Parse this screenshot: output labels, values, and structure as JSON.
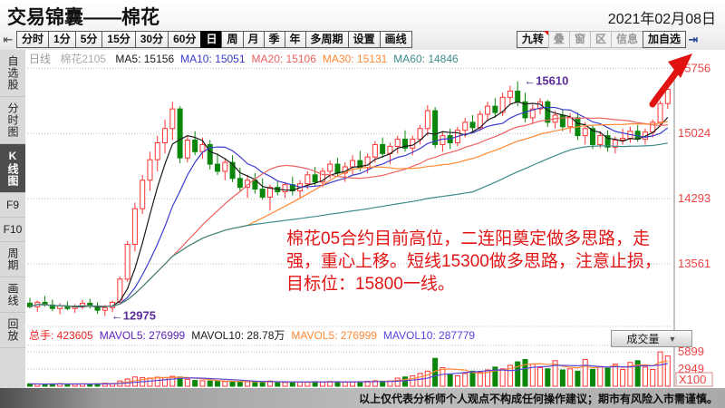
{
  "window": {
    "title": "交易锦囊——棉花",
    "date": "2021年02月08日"
  },
  "toolbar": {
    "collapse_icon": "⇤",
    "jump_icon": "⇥",
    "periods": [
      "分时",
      "1分",
      "5分",
      "15分",
      "30分",
      "60分",
      "日",
      "周",
      "月",
      "季",
      "年",
      "多周期",
      "设置",
      "画线"
    ],
    "active_period": "日",
    "tools": [
      {
        "label": "九转",
        "badge": true
      },
      {
        "label": "叠",
        "muted": true
      },
      {
        "label": "窗",
        "muted": true
      },
      {
        "label": "区",
        "muted": true
      },
      {
        "label": "信息",
        "muted": true
      },
      {
        "label": "加自选"
      }
    ]
  },
  "sidebar": {
    "items": [
      "自选股",
      "分时图",
      "K线图",
      "F9",
      "F10",
      "周期",
      "画线",
      "回放"
    ],
    "active": "K线图"
  },
  "indicator_bar": {
    "period": "日线",
    "symbol": "棉花2105",
    "ma_items": [
      {
        "label": "MA5: 15156",
        "color": "#1a1a1a"
      },
      {
        "label": "MA10: 15051",
        "color": "#3c3ccc"
      },
      {
        "label": "MA20: 15106",
        "color": "#ee6060"
      },
      {
        "label": "MA30: 15131",
        "color": "#ff8833"
      },
      {
        "label": "MA60: 14846",
        "color": "#3d8a8a"
      }
    ]
  },
  "volume_bar": {
    "items": [
      {
        "label": "总手: 423605",
        "color": "#ee2222"
      },
      {
        "label": "MAVOL5: 276999",
        "color": "#5b22bb"
      },
      {
        "label": "MAVOL10: 28.78万",
        "color": "#1a1a1a"
      },
      {
        "label": "MAVOL5: 276999",
        "color": "#ff8833"
      },
      {
        "label": "MAVOL10: 287779",
        "color": "#5544dd"
      }
    ],
    "selector_label": "成交量",
    "caret_icon": "▼"
  },
  "annotations": {
    "high": {
      "text": "←15610",
      "price": 15610,
      "color": "#5b2b9b"
    },
    "low": {
      "text": "←12975",
      "price": 12975,
      "color": "#5b2b9b"
    },
    "note": {
      "text": "棉花05合约目前高位，二连阳奠定做多思路，走\n强，重心上移。短线15300做多思路，注意止损，\n目标位：15800一线。",
      "color": "#e21515"
    },
    "trend_arrow": {
      "color": "#e01212"
    }
  },
  "footer": {
    "disclaimer": "以上仅代表分析师个人观点不构成任何操作建议；期市有风险入市需谨慎。"
  },
  "chart_data": {
    "type": "candlestick+volume",
    "title": "棉花2105 日线",
    "legend_position": "top-left",
    "grid": "dotted-horizontal",
    "up_color": "#ff3232",
    "down_color": "#0a870a",
    "price_axis": {
      "ylim": [
        12900,
        15810
      ],
      "ticks": [
        "15756",
        "15024",
        "14293",
        "13561"
      ],
      "tick_values": [
        15756,
        15024,
        14293,
        13561
      ],
      "tick_color": "#ee4444"
    },
    "volume_axis": {
      "ylim": [
        0,
        6400
      ],
      "ticks": [
        "5899",
        "2949"
      ],
      "tick_values": [
        5899,
        2949
      ],
      "unit": "X100",
      "tick_color": "#ee4444"
    },
    "ma_periods": [
      5,
      10,
      20,
      30,
      60
    ],
    "ma_colors": [
      "#1a1a1a",
      "#3c3ccc",
      "#ee6060",
      "#ff8833",
      "#3d8a8a"
    ],
    "vol_ma_periods": [
      5,
      10
    ],
    "vol_ma_colors": [
      "#ff8833",
      "#5544dd"
    ],
    "candles": [
      [
        13120,
        13180,
        13060,
        13080
      ],
      [
        13080,
        13150,
        13020,
        13130
      ],
      [
        13130,
        13200,
        13080,
        13100
      ],
      [
        13100,
        13160,
        13030,
        13060
      ],
      [
        13060,
        13120,
        12995,
        13090
      ],
      [
        13090,
        13140,
        13040,
        13060
      ],
      [
        13060,
        13110,
        13010,
        13080
      ],
      [
        13080,
        13160,
        13050,
        13120
      ],
      [
        13120,
        13170,
        13060,
        13090
      ],
      [
        13090,
        13130,
        13000,
        13040
      ],
      [
        13040,
        13100,
        12975,
        13070
      ],
      [
        13070,
        13150,
        13020,
        13130
      ],
      [
        13130,
        13420,
        13110,
        13390
      ],
      [
        13390,
        13820,
        13360,
        13780
      ],
      [
        13780,
        14250,
        13700,
        14180
      ],
      [
        14180,
        14560,
        14120,
        14500
      ],
      [
        14500,
        14820,
        14380,
        14730
      ],
      [
        14730,
        15000,
        14600,
        14920
      ],
      [
        14920,
        15180,
        14800,
        15080
      ],
      [
        15080,
        15380,
        14950,
        15300
      ],
      [
        15300,
        15330,
        14690,
        14750
      ],
      [
        14750,
        15000,
        14700,
        14950
      ],
      [
        14950,
        15050,
        14780,
        14820
      ],
      [
        14820,
        14980,
        14740,
        14900
      ],
      [
        14900,
        14950,
        14620,
        14680
      ],
      [
        14680,
        14800,
        14560,
        14600
      ],
      [
        14600,
        14750,
        14500,
        14700
      ],
      [
        14700,
        14780,
        14480,
        14520
      ],
      [
        14520,
        14640,
        14380,
        14420
      ],
      [
        14420,
        14560,
        14300,
        14500
      ],
      [
        14500,
        14580,
        14350,
        14400
      ],
      [
        14400,
        14520,
        14280,
        14310
      ],
      [
        14310,
        14450,
        14160,
        14420
      ],
      [
        14420,
        14490,
        14330,
        14370
      ],
      [
        14370,
        14480,
        14300,
        14450
      ],
      [
        14450,
        14540,
        14330,
        14380
      ],
      [
        14380,
        14500,
        14300,
        14460
      ],
      [
        14460,
        14600,
        14400,
        14560
      ],
      [
        14560,
        14650,
        14440,
        14480
      ],
      [
        14480,
        14640,
        14420,
        14600
      ],
      [
        14600,
        14720,
        14520,
        14680
      ],
      [
        14680,
        14750,
        14540,
        14580
      ],
      [
        14580,
        14700,
        14480,
        14650
      ],
      [
        14650,
        14780,
        14560,
        14720
      ],
      [
        14720,
        14830,
        14600,
        14640
      ],
      [
        14640,
        14800,
        14580,
        14760
      ],
      [
        14760,
        14940,
        14700,
        14900
      ],
      [
        14900,
        14980,
        14750,
        14800
      ],
      [
        14800,
        14920,
        14680,
        14880
      ],
      [
        14880,
        15000,
        14800,
        14960
      ],
      [
        14960,
        15060,
        14820,
        14860
      ],
      [
        14860,
        15000,
        14780,
        14960
      ],
      [
        14960,
        15120,
        14900,
        15080
      ],
      [
        15080,
        15340,
        15000,
        15280
      ],
      [
        15280,
        15320,
        14860,
        14900
      ],
      [
        14900,
        15050,
        14820,
        15000
      ],
      [
        15000,
        15080,
        14850,
        14920
      ],
      [
        14920,
        15100,
        14880,
        15060
      ],
      [
        15060,
        15200,
        14980,
        15150
      ],
      [
        15150,
        15230,
        15040,
        15090
      ],
      [
        15090,
        15280,
        15050,
        15240
      ],
      [
        15240,
        15380,
        15160,
        15330
      ],
      [
        15330,
        15420,
        15200,
        15260
      ],
      [
        15260,
        15480,
        15220,
        15430
      ],
      [
        15430,
        15560,
        15350,
        15500
      ],
      [
        15500,
        15610,
        15330,
        15380
      ],
      [
        15380,
        15480,
        15150,
        15200
      ],
      [
        15200,
        15350,
        15130,
        15300
      ],
      [
        15300,
        15420,
        15240,
        15380
      ],
      [
        15380,
        15400,
        15100,
        15150
      ],
      [
        15150,
        15280,
        15080,
        15230
      ],
      [
        15230,
        15300,
        15050,
        15100
      ],
      [
        15100,
        15250,
        15030,
        15200
      ],
      [
        15200,
        15260,
        14950,
        15000
      ],
      [
        15000,
        15150,
        14900,
        15080
      ],
      [
        15080,
        15120,
        14850,
        14900
      ],
      [
        14900,
        15050,
        14860,
        15000
      ],
      [
        15000,
        15060,
        14820,
        14870
      ],
      [
        14870,
        14990,
        14800,
        14950
      ],
      [
        14950,
        15080,
        14900,
        14970
      ],
      [
        14970,
        15100,
        14920,
        15050
      ],
      [
        15050,
        15120,
        14930,
        14960
      ],
      [
        14960,
        15080,
        14900,
        15040
      ],
      [
        15040,
        15180,
        14980,
        15150
      ],
      [
        15150,
        15390,
        15100,
        15360
      ],
      [
        15360,
        15560,
        15300,
        15520
      ]
    ],
    "volumes": [
      420,
      380,
      350,
      400,
      460,
      390,
      360,
      420,
      380,
      440,
      520,
      480,
      900,
      1250,
      1600,
      1500,
      1400,
      1550,
      1450,
      1700,
      1600,
      1200,
      1000,
      950,
      900,
      850,
      800,
      780,
      820,
      760,
      700,
      720,
      900,
      680,
      650,
      700,
      720,
      760,
      800,
      780,
      820,
      760,
      700,
      730,
      790,
      850,
      950,
      880,
      920,
      1400,
      1600,
      1800,
      2200,
      2600,
      4800,
      3200,
      2000,
      1800,
      2200,
      2600,
      2400,
      2800,
      3300,
      3000,
      3600,
      4200,
      4600,
      3800,
      3200,
      3000,
      4400,
      2800,
      3000,
      2600,
      4600,
      2900,
      3400,
      3100,
      3800,
      2900,
      4100,
      4400,
      3300,
      2900,
      5899,
      5200
    ]
  }
}
